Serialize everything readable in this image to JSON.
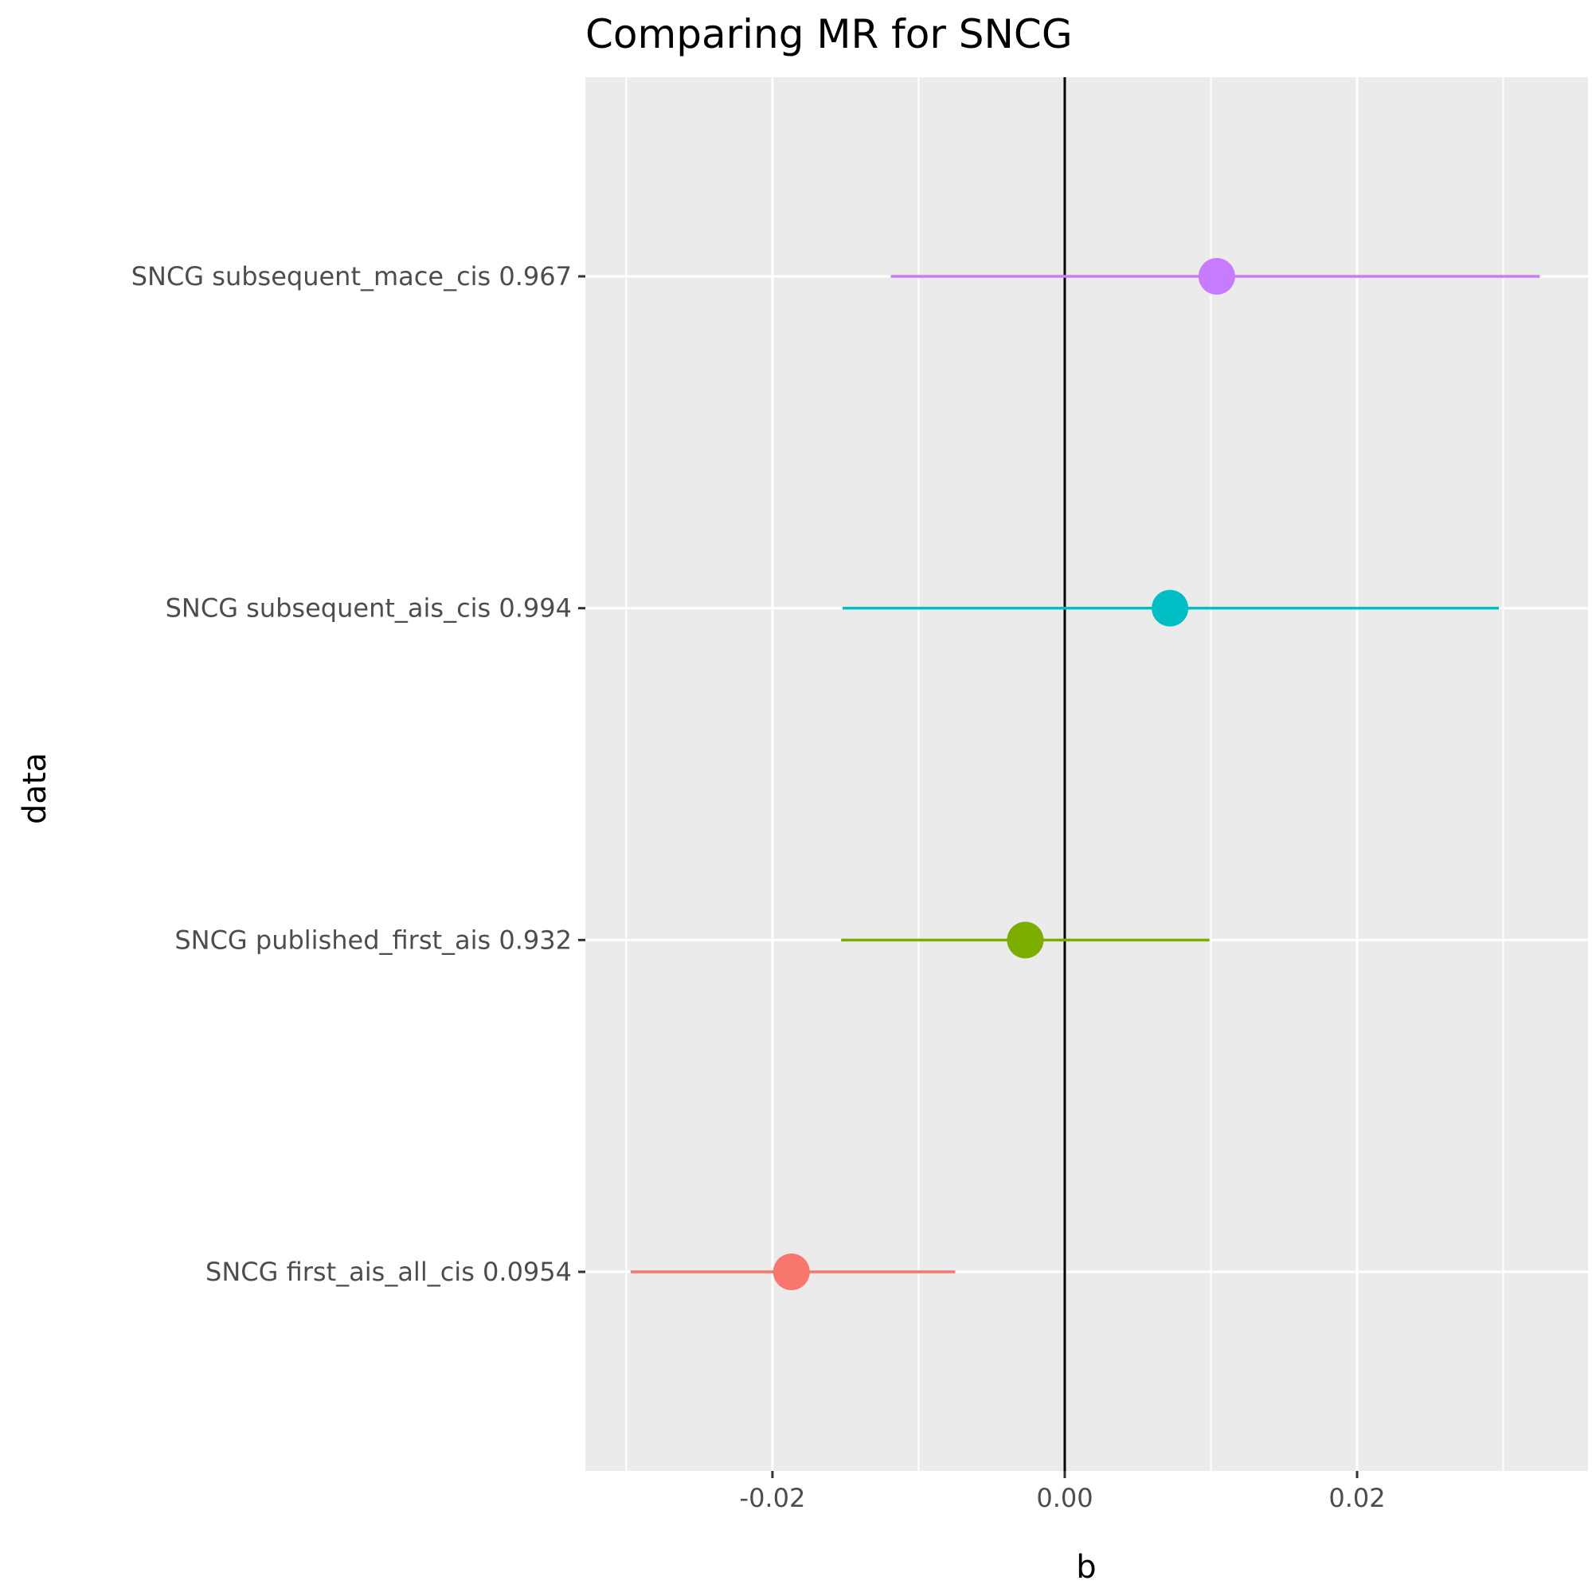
{
  "chart_data": {
    "type": "forest",
    "title": "Comparing MR for SNCG",
    "xlabel": "b",
    "ylabel": "data",
    "xlim": [
      -0.0328,
      0.0358
    ],
    "x_ticks": [
      -0.02,
      0.0,
      0.02
    ],
    "x_tick_labels": [
      "-0.02",
      "0.00",
      "0.02"
    ],
    "reference_line": 0,
    "grid": true,
    "legend": "none",
    "panel_color": "#ebebeb",
    "grid_color": "#ffffff",
    "categories": [
      "SNCG first_ais_all_cis 0.0954",
      "SNCG published_first_ais 0.932",
      "SNCG subsequent_ais_cis 0.994",
      "SNCG subsequent_mace_cis 0.967"
    ],
    "estimates": [
      -0.0187,
      -0.0027,
      0.0072,
      0.0104
    ],
    "lower": [
      -0.0297,
      -0.0153,
      -0.0152,
      -0.0119
    ],
    "upper": [
      -0.0075,
      0.0099,
      0.0297,
      0.0325
    ],
    "colors": [
      "#F8766D",
      "#7CAE00",
      "#00BFC4",
      "#C77CFF"
    ]
  }
}
